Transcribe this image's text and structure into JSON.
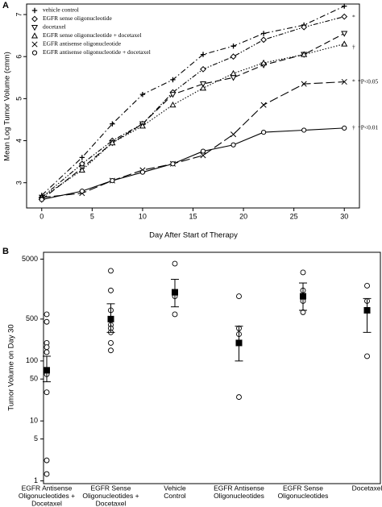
{
  "chart_data": [
    {
      "type": "line",
      "panel_label": "A",
      "xlabel": "Day After Start of Therapy",
      "ylabel": "Mean Log Tumor Volume (cmm)",
      "x": [
        0,
        4,
        7,
        10,
        13,
        16,
        19,
        22,
        26,
        30
      ],
      "xlim": [
        -1.5,
        31.5
      ],
      "xticks": [
        0,
        5,
        10,
        15,
        20,
        25,
        30
      ],
      "ylim": [
        2.4,
        7.25
      ],
      "yticks": [
        3,
        4,
        5,
        6,
        7
      ],
      "legend": "upper left",
      "series": [
        {
          "name": "vehicle control",
          "color": "#000000",
          "marker": "plus",
          "dash": "7 3 1.5 3",
          "values": [
            2.7,
            3.6,
            4.4,
            5.1,
            5.45,
            6.05,
            6.25,
            6.55,
            6.75,
            7.2
          ]
        },
        {
          "name": "EGFR sense oligonucleotide",
          "color": "#000000",
          "marker": "diamond",
          "dash": "6 2 1.5 2 1.5 2",
          "values": [
            2.65,
            3.45,
            4.0,
            4.4,
            5.15,
            5.7,
            6.0,
            6.4,
            6.7,
            6.95
          ]
        },
        {
          "name": "docetaxel",
          "color": "#000000",
          "marker": "triangle-down",
          "dash": "8 4",
          "values": [
            2.6,
            3.35,
            3.95,
            4.4,
            5.1,
            5.35,
            5.5,
            5.8,
            6.05,
            6.55
          ]
        },
        {
          "name": "EGFR sense oligonucleotide + docetaxel",
          "color": "#000000",
          "marker": "triangle-up",
          "dash": "1.5 2",
          "values": [
            2.65,
            3.3,
            3.95,
            4.35,
            4.85,
            5.25,
            5.6,
            5.85,
            6.05,
            6.3
          ]
        },
        {
          "name": "EGFR antisense oligonucleotide",
          "color": "#000000",
          "marker": "cross",
          "dash": "11 4",
          "values": [
            2.65,
            2.75,
            3.05,
            3.3,
            3.45,
            3.65,
            4.15,
            4.85,
            5.35,
            5.4
          ]
        },
        {
          "name": "EGFR antisense oligonucleotide + docetaxel",
          "color": "#000000",
          "marker": "circle",
          "dash": "",
          "values": [
            2.6,
            2.8,
            3.05,
            3.25,
            3.45,
            3.75,
            3.9,
            4.2,
            4.25,
            4.3
          ]
        }
      ],
      "annotations": [
        "*",
        "†",
        "*",
        "*P<0.05",
        "†",
        "†P<0.01"
      ]
    },
    {
      "type": "scatter",
      "panel_label": "B",
      "ylabel": "Tumor Volume on Day 30",
      "log": true,
      "ylim": [
        0.9,
        6500
      ],
      "yticks": [
        1,
        5,
        10,
        50,
        100,
        500,
        5000
      ],
      "categories": [
        [
          "EGFR Antisense",
          "Oligonucleotides +",
          "Docetaxel"
        ],
        [
          "EGFR Sense",
          "Oligonucleotides +",
          "Docetaxel"
        ],
        [
          "Vehicle",
          "Control"
        ],
        [
          "EGFR Antisense",
          "Oligonucleotides"
        ],
        [
          "EGFR Sense",
          "Oligonucleotides"
        ],
        [
          "Docetaxel"
        ]
      ],
      "groups": [
        {
          "points": [
            600,
            450,
            200,
            170,
            140,
            60,
            30,
            2.2,
            1.3
          ],
          "mean": 70,
          "lower": 45,
          "upper": 120
        },
        {
          "points": [
            3200,
            1500,
            700,
            500,
            400,
            350,
            300,
            200,
            150
          ],
          "mean": 500,
          "lower": 300,
          "upper": 900
        },
        {
          "points": [
            4200,
            1200,
            600
          ],
          "mean": 1400,
          "lower": 800,
          "upper": 2300
        },
        {
          "points": [
            1200,
            350,
            280,
            25
          ],
          "mean": 200,
          "lower": 100,
          "upper": 380
        },
        {
          "points": [
            3000,
            1500,
            1000,
            650
          ],
          "mean": 1200,
          "lower": 700,
          "upper": 2000
        },
        {
          "points": [
            1800,
            1000,
            120
          ],
          "mean": 700,
          "lower": 300,
          "upper": 1100
        }
      ]
    }
  ]
}
